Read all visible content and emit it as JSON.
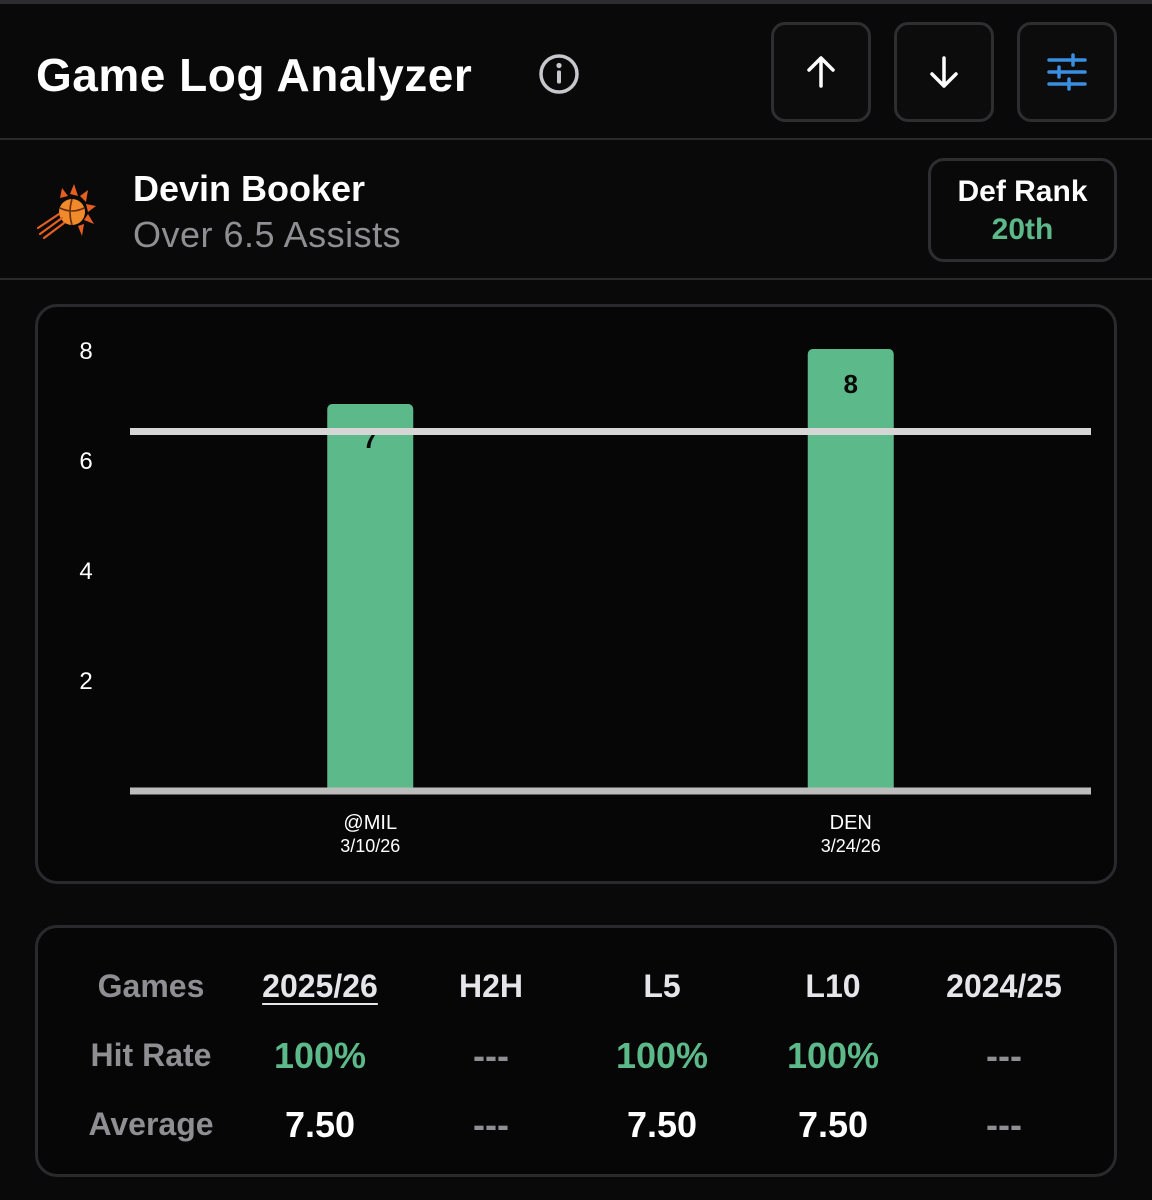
{
  "header": {
    "title": "Game Log Analyzer",
    "info_icon": "info-circle-icon",
    "buttons": [
      {
        "icon": "arrow-up-icon"
      },
      {
        "icon": "arrow-down-icon"
      },
      {
        "icon": "sliders-filter-icon",
        "color": "#3a8fe0"
      }
    ]
  },
  "player": {
    "name": "Devin Booker",
    "prop": "Over 6.5 Assists",
    "team_logo": "suns-logo",
    "def_rank_label": "Def Rank",
    "def_rank_value": "20th"
  },
  "chart_data": {
    "type": "bar",
    "categories": [
      "@MIL",
      "DEN"
    ],
    "dates": [
      "3/10/26",
      "3/24/26"
    ],
    "values": [
      7,
      8
    ],
    "threshold": 6.5,
    "y_ticks": [
      2,
      4,
      6,
      8
    ],
    "ylim": [
      0,
      8
    ],
    "bar_color": "#5cb98a",
    "line_color": "#d6d6d6"
  },
  "stats": {
    "columns": [
      "2025/26",
      "H2H",
      "L5",
      "L10",
      "2024/25"
    ],
    "active_column": "2025/26",
    "rows": [
      {
        "label": "Hit Rate",
        "values": [
          "100%",
          "---",
          "100%",
          "100%",
          "---"
        ]
      },
      {
        "label": "Average",
        "values": [
          "7.50",
          "---",
          "7.50",
          "7.50",
          "---"
        ]
      }
    ],
    "games_label": "Games"
  },
  "colors": {
    "accent_green": "#5cb98a",
    "accent_blue": "#3a8fe0",
    "muted": "#8e8e93",
    "background": "#090909"
  }
}
